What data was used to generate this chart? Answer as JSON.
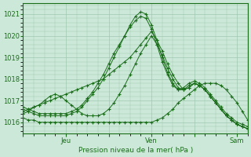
{
  "background_color": "#cce8d8",
  "grid_color": "#a0c8b0",
  "line_color": "#1a6e1a",
  "marker_color": "#1a6e1a",
  "xlabel": "Pression niveau de la mer( hPa )",
  "ylim": [
    1015.5,
    1021.5
  ],
  "yticks": [
    1016,
    1017,
    1018,
    1019,
    1020,
    1021
  ],
  "xtick_labels": [
    "",
    "Jeu",
    "",
    "Ven",
    "",
    "Sam"
  ],
  "xtick_positions": [
    0,
    24,
    48,
    72,
    96,
    120
  ],
  "total_hours": 126,
  "series": [
    {
      "x": [
        0,
        3,
        6,
        9,
        12,
        15,
        18,
        21,
        24,
        27,
        30,
        33,
        36,
        39,
        42,
        45,
        48,
        51,
        54,
        57,
        60,
        63,
        66,
        69,
        72,
        75,
        78,
        81,
        84,
        87,
        90,
        93,
        96,
        99,
        102,
        105,
        108,
        111,
        114,
        117,
        120,
        123,
        126
      ],
      "y": [
        1016.6,
        1016.5,
        1016.4,
        1016.3,
        1016.3,
        1016.3,
        1016.3,
        1016.3,
        1016.3,
        1016.4,
        1016.5,
        1016.7,
        1017.0,
        1017.3,
        1017.6,
        1018.0,
        1018.5,
        1019.0,
        1019.5,
        1020.0,
        1020.5,
        1020.9,
        1021.1,
        1021.0,
        1020.5,
        1019.8,
        1019.0,
        1018.3,
        1017.8,
        1017.5,
        1017.6,
        1017.8,
        1017.9,
        1017.8,
        1017.6,
        1017.3,
        1017.0,
        1016.7,
        1016.4,
        1016.2,
        1016.0,
        1015.9,
        1015.8
      ]
    },
    {
      "x": [
        0,
        3,
        6,
        9,
        12,
        15,
        18,
        21,
        24,
        27,
        30,
        33,
        36,
        39,
        42,
        45,
        48,
        51,
        54,
        57,
        60,
        63,
        66,
        69,
        72,
        75,
        78,
        81,
        84,
        87,
        90,
        93,
        96,
        99,
        102,
        105,
        108,
        111,
        114,
        117,
        120,
        123,
        126
      ],
      "y": [
        1016.7,
        1016.6,
        1016.5,
        1016.4,
        1016.4,
        1016.4,
        1016.4,
        1016.4,
        1016.4,
        1016.5,
        1016.6,
        1016.8,
        1017.1,
        1017.4,
        1017.8,
        1018.2,
        1018.7,
        1019.2,
        1019.6,
        1020.0,
        1020.4,
        1020.7,
        1020.9,
        1020.8,
        1020.3,
        1019.6,
        1018.8,
        1018.2,
        1017.7,
        1017.5,
        1017.5,
        1017.7,
        1017.8,
        1017.7,
        1017.5,
        1017.2,
        1016.9,
        1016.6,
        1016.3,
        1016.1,
        1015.9,
        1015.8,
        1015.7
      ]
    },
    {
      "x": [
        0,
        3,
        6,
        9,
        12,
        15,
        18,
        21,
        24,
        27,
        30,
        33,
        36,
        39,
        42,
        45,
        48,
        51,
        54,
        57,
        60,
        63,
        66,
        69,
        72,
        75,
        78,
        81,
        84,
        87,
        90,
        93,
        96,
        99,
        102,
        105,
        108,
        111,
        114,
        117,
        120,
        123,
        126
      ],
      "y": [
        1016.5,
        1016.6,
        1016.7,
        1016.8,
        1016.9,
        1017.0,
        1017.1,
        1017.2,
        1017.3,
        1017.4,
        1017.5,
        1017.6,
        1017.7,
        1017.8,
        1017.9,
        1018.0,
        1018.2,
        1018.4,
        1018.6,
        1018.8,
        1019.0,
        1019.3,
        1019.6,
        1019.9,
        1020.2,
        1019.8,
        1019.3,
        1018.7,
        1018.2,
        1017.8,
        1017.5,
        1017.6,
        1017.8,
        1017.7,
        1017.5,
        1017.2,
        1016.9,
        1016.6,
        1016.3,
        1016.1,
        1015.9,
        1015.8,
        1015.7
      ]
    },
    {
      "x": [
        0,
        3,
        6,
        9,
        12,
        15,
        18,
        21,
        24,
        27,
        30,
        33,
        36,
        39,
        42,
        45,
        48,
        51,
        54,
        57,
        60,
        63,
        66,
        69,
        72,
        75,
        78,
        81,
        84,
        87,
        90,
        93,
        96,
        99,
        102,
        105,
        108,
        111,
        114,
        117,
        120,
        123,
        126
      ],
      "y": [
        1016.4,
        1016.5,
        1016.7,
        1016.8,
        1017.0,
        1017.2,
        1017.3,
        1017.2,
        1017.0,
        1016.8,
        1016.6,
        1016.4,
        1016.3,
        1016.3,
        1016.3,
        1016.4,
        1016.6,
        1016.9,
        1017.3,
        1017.7,
        1018.2,
        1018.7,
        1019.2,
        1019.6,
        1020.0,
        1019.6,
        1019.1,
        1018.5,
        1018.0,
        1017.6,
        1017.5,
        1017.6,
        1017.8,
        1017.7,
        1017.5,
        1017.2,
        1016.9,
        1016.6,
        1016.3,
        1016.1,
        1015.9,
        1015.8,
        1015.7
      ]
    },
    {
      "x": [
        0,
        3,
        6,
        9,
        12,
        15,
        18,
        21,
        24,
        27,
        30,
        33,
        36,
        39,
        42,
        45,
        48,
        51,
        54,
        57,
        60,
        63,
        66,
        69,
        72,
        75,
        78,
        81,
        84,
        87,
        90,
        93,
        96,
        99,
        102,
        105,
        108,
        111,
        114,
        117,
        120,
        123,
        126
      ],
      "y": [
        1016.2,
        1016.1,
        1016.1,
        1016.0,
        1016.0,
        1016.0,
        1016.0,
        1016.0,
        1016.0,
        1016.0,
        1016.0,
        1016.0,
        1016.0,
        1016.0,
        1016.0,
        1016.0,
        1016.0,
        1016.0,
        1016.0,
        1016.0,
        1016.0,
        1016.0,
        1016.0,
        1016.0,
        1016.0,
        1016.1,
        1016.2,
        1016.4,
        1016.6,
        1016.9,
        1017.1,
        1017.3,
        1017.5,
        1017.7,
        1017.8,
        1017.8,
        1017.8,
        1017.7,
        1017.5,
        1017.2,
        1016.9,
        1016.5,
        1016.1
      ]
    }
  ]
}
